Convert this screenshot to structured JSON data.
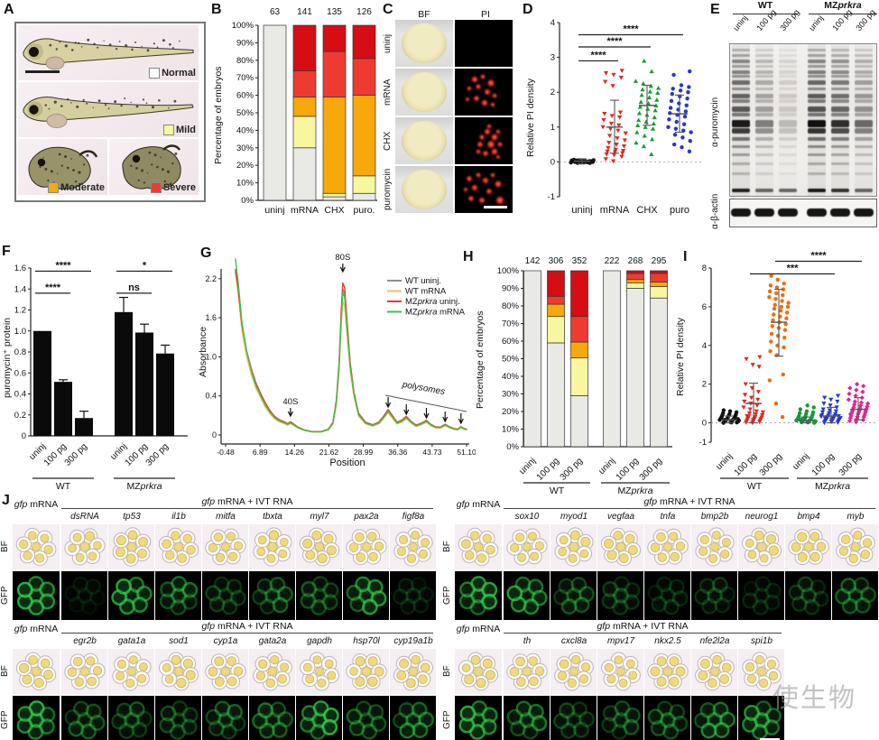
{
  "figure": {
    "labels": {
      "A": "A",
      "B": "B",
      "C": "C",
      "D": "D",
      "E": "E",
      "F": "F",
      "G": "G",
      "H": "H",
      "I": "I",
      "J": "J"
    }
  },
  "colors": {
    "normal": "#e9e9e6",
    "mild": "#f9f6a0",
    "moderate": "#f7a80b",
    "severe": "#ee3b31",
    "severe_dark": "#d60d12",
    "black": "#111111",
    "red": "#e02722",
    "green": "#149b38",
    "blue": "#2a35c8",
    "orange": "#f06b10",
    "magenta": "#ea1f93"
  },
  "watermark": "使生物",
  "panelA": {
    "legend": [
      {
        "name": "Normal",
        "color": "#ffffff"
      },
      {
        "name": "Mild",
        "color": "#f9f6a0"
      },
      {
        "name": "Moderate",
        "color": "#f7a80b"
      },
      {
        "name": "Severe",
        "color": "#ee3b31"
      }
    ]
  },
  "panelC": {
    "col_headers": [
      "BF",
      "PI"
    ],
    "rows": [
      "uninj",
      "mRNA",
      "CHX",
      "puromycin"
    ]
  },
  "panelE": {
    "groups": [
      {
        "prefix": "",
        "name": "WT"
      },
      {
        "prefix": "MZ",
        "name": "prkra"
      }
    ],
    "lanes": [
      "uninj",
      "100 pg",
      "300 pg",
      "uninj",
      "100 pg",
      "300 pg"
    ],
    "lane_intensity": [
      1.0,
      0.5,
      0.22,
      1.05,
      0.9,
      0.6
    ],
    "blot_labels": [
      "α-puromycin",
      "α-β-actin"
    ]
  },
  "panelJ": {
    "control_label": "gfp mRNA",
    "header": "gfp mRNA + IVT RNA",
    "row_labels": [
      "BF",
      "GFP"
    ],
    "blocks": [
      {
        "genes": [
          "dsRNA",
          "tp53",
          "il1b",
          "mitfa",
          "tbxta",
          "myl7",
          "pax2a",
          "figf8a"
        ],
        "gfp": [
          0.12,
          0.85,
          0.6,
          0.35,
          0.5,
          0.5,
          0.8,
          0.2
        ],
        "control_gfp": 0.88
      },
      {
        "genes": [
          "sox10",
          "myod1",
          "vegfaa",
          "tnfa",
          "bmp2b",
          "neurog1",
          "bmp4",
          "myb"
        ],
        "gfp": [
          0.85,
          0.45,
          0.35,
          0.22,
          0.3,
          0.2,
          0.35,
          0.5
        ],
        "control_gfp": 0.88
      },
      {
        "genes": [
          "egr2b",
          "gata1a",
          "sod1",
          "cyp1a",
          "gata2a",
          "gapdh",
          "hsp70l",
          "cyp19a1b"
        ],
        "gfp": [
          0.5,
          0.45,
          0.4,
          0.5,
          0.6,
          0.9,
          0.55,
          0.6
        ],
        "control_gfp": 0.88
      },
      {
        "genes": [
          "th",
          "cxcl8a",
          "mpv17",
          "nkx2.5",
          "nfe2l2a",
          "spi1b"
        ],
        "gfp": [
          0.6,
          0.4,
          0.45,
          0.5,
          0.7,
          0.85
        ],
        "control_gfp": 0.88
      }
    ]
  },
  "chart_data": [
    {
      "panel": "B",
      "type": "stacked-bar",
      "ylabel": "Percentage of embryos",
      "categories": [
        "uninj",
        "mRNA",
        "CHX",
        "puro."
      ],
      "counts": [
        63,
        141,
        135,
        126
      ],
      "yticks": [
        "0%",
        "10%",
        "20%",
        "30%",
        "40%",
        "50%",
        "60%",
        "70%",
        "80%",
        "90%",
        "100%"
      ],
      "series": [
        {
          "name": "Normal",
          "color": "#e9e9e6",
          "values": [
            100,
            30,
            2,
            4
          ]
        },
        {
          "name": "Mild",
          "color": "#f9f6a0",
          "values": [
            0,
            18,
            2,
            10
          ]
        },
        {
          "name": "Moderate",
          "color": "#f7a80b",
          "values": [
            0,
            11,
            55,
            46
          ]
        },
        {
          "name": "Severe",
          "color": "#ee3b31",
          "values": [
            0,
            15,
            26,
            21
          ]
        },
        {
          "name": "Severe-dark",
          "color": "#d60d12",
          "values": [
            0,
            26,
            15,
            19
          ]
        }
      ]
    },
    {
      "panel": "D",
      "type": "scatter",
      "ylabel": "Relative PI density",
      "yticks": [
        -1,
        0,
        1,
        2,
        3,
        4
      ],
      "ylim": [
        -1,
        4
      ],
      "categories": [
        "uninj",
        "mRNA",
        "CHX",
        "puro"
      ],
      "groups": [
        {
          "name": "uninj",
          "color": "#111111",
          "marker": "circle",
          "mean": 0.02,
          "lo": -0.05,
          "hi": 0.09,
          "values": [
            0.0,
            0.02,
            -0.02,
            0.03,
            0.01,
            -0.01,
            0.04,
            0.0,
            0.02,
            -0.03,
            0.05,
            0.01,
            0.03,
            -0.02,
            0.0,
            0.02,
            0.04,
            -0.01,
            0.01,
            0.03,
            0.0,
            -0.02,
            0.05,
            0.02,
            0.01,
            0.06,
            -0.03,
            0.03,
            0.0,
            0.02
          ]
        },
        {
          "name": "mRNA",
          "color": "#e02722",
          "marker": "tri-down",
          "mean": 1.0,
          "lo": 0.25,
          "hi": 1.77,
          "values": [
            0.02,
            0.08,
            0.15,
            0.2,
            0.22,
            0.25,
            0.28,
            0.3,
            0.32,
            0.35,
            0.4,
            0.45,
            0.5,
            0.55,
            0.62,
            0.68,
            0.75,
            0.82,
            0.9,
            0.95,
            1.0,
            1.05,
            1.1,
            1.2,
            1.28,
            1.32,
            1.38,
            1.42,
            2.18,
            2.3,
            2.42,
            2.5,
            2.55,
            2.62
          ]
        },
        {
          "name": "CHX",
          "color": "#149b38",
          "marker": "tri-up",
          "mean": 1.62,
          "lo": 1.05,
          "hi": 2.2,
          "values": [
            0.22,
            0.45,
            0.55,
            0.65,
            0.75,
            0.85,
            0.95,
            1.0,
            1.05,
            1.1,
            1.15,
            1.2,
            1.28,
            1.35,
            1.4,
            1.48,
            1.52,
            1.58,
            1.62,
            1.68,
            1.72,
            1.78,
            1.85,
            1.92,
            1.98,
            2.02,
            2.08,
            2.12,
            2.18,
            2.25,
            2.32,
            2.6,
            2.9
          ]
        },
        {
          "name": "puro",
          "color": "#2a35c8",
          "marker": "circle",
          "mean": 1.38,
          "lo": 0.85,
          "hi": 1.92,
          "values": [
            0.3,
            0.42,
            0.5,
            0.6,
            0.7,
            0.78,
            0.85,
            0.9,
            0.95,
            1.0,
            1.08,
            1.15,
            1.22,
            1.3,
            1.35,
            1.4,
            1.45,
            1.5,
            1.55,
            1.62,
            1.68,
            1.75,
            1.82,
            1.88,
            1.95,
            2.0,
            2.05,
            2.1,
            2.15,
            2.2,
            2.5,
            2.6
          ]
        }
      ],
      "sig": [
        {
          "a": 0,
          "b": 1,
          "label": "****",
          "y": 2.9
        },
        {
          "a": 0,
          "b": 2,
          "label": "****",
          "y": 3.3
        },
        {
          "a": 0,
          "b": 3,
          "label": "****",
          "y": 3.65
        }
      ]
    },
    {
      "panel": "F",
      "type": "bar",
      "ylabel": "puromycin⁺ protein",
      "yticks": [
        0,
        0.2,
        0.4,
        0.6,
        0.8,
        1.0,
        1.2,
        1.4,
        1.6
      ],
      "ylim": [
        0,
        1.6
      ],
      "categories": [
        "uninj",
        "100 pg",
        "300 pg",
        "uninj",
        "100 pg",
        "300 pg"
      ],
      "group_labels": [
        "WT",
        "MZprkra"
      ],
      "values": [
        1.0,
        0.515,
        0.17,
        1.18,
        0.985,
        0.785
      ],
      "errors": [
        0,
        0.02,
        0.065,
        0.14,
        0.08,
        0.08
      ],
      "bar_color": "#0a0a0a",
      "sig": [
        {
          "a": 0,
          "b": 1,
          "label": "****",
          "y": 1.36
        },
        {
          "a": 0,
          "b": 2,
          "label": "****",
          "y": 1.57
        },
        {
          "a": 3,
          "b": 4,
          "label": "ns",
          "y": 1.36
        },
        {
          "a": 3,
          "b": 5,
          "label": "*",
          "y": 1.57
        }
      ]
    },
    {
      "panel": "G",
      "type": "line",
      "ylabel": "Absorbance",
      "xlabel": "Position",
      "yticks": [
        "0",
        "0.4",
        "1.0",
        "1.6",
        "2.2"
      ],
      "xticks": [
        "-0.48",
        "6.89",
        "14.26",
        "21.62",
        "28.99",
        "36.36",
        "43.73",
        "51.10"
      ],
      "annotations": {
        "peak40s": "40S",
        "peak80s": "80S",
        "polysomes": "polysomes"
      },
      "x": [
        1.6,
        2.2,
        3,
        4,
        5,
        6,
        7,
        8,
        9,
        10,
        11,
        12,
        12.8,
        13.4,
        14.0,
        15,
        16.5,
        18,
        20,
        21.5,
        22.5,
        23.2,
        23.8,
        24.2,
        24.6,
        25.0,
        25.5,
        26.2,
        27,
        28,
        29.5,
        31,
        32.3,
        33.3,
        34.3,
        35.2,
        36.2,
        37.2,
        38.2,
        39.2,
        40.3,
        41.4,
        42.5,
        43.4,
        44.4,
        45.5,
        46.5,
        47.4,
        48.4,
        49.2,
        49.9,
        50.6,
        51.2
      ],
      "y": [
        2.35,
        2.05,
        1.5,
        1.1,
        0.82,
        0.6,
        0.44,
        0.33,
        0.25,
        0.19,
        0.155,
        0.135,
        0.115,
        0.135,
        0.115,
        0.08,
        0.05,
        0.035,
        0.035,
        0.06,
        0.13,
        0.35,
        0.9,
        1.6,
        2.12,
        2.05,
        1.55,
        0.9,
        0.45,
        0.22,
        0.13,
        0.105,
        0.13,
        0.19,
        0.26,
        0.2,
        0.13,
        0.15,
        0.19,
        0.14,
        0.1,
        0.12,
        0.15,
        0.11,
        0.085,
        0.08,
        0.11,
        0.085,
        0.065,
        0.06,
        0.085,
        0.065,
        0.06
      ],
      "series": [
        {
          "name": "WT uninj.",
          "color": "#8f8f8f",
          "scale": 0.965,
          "left": 1.0
        },
        {
          "name": "WT mRNA",
          "color": "#f3bd64",
          "scale": 0.875,
          "left": 1.02
        },
        {
          "name": "MZprkra uninj.",
          "color": "#e03b32",
          "scale": 1.01,
          "left": 1.0
        },
        {
          "name": "MZprkra mRNA",
          "color": "#3ec24b",
          "scale": 0.94,
          "left": 1.12
        }
      ],
      "polysome_peaks_x": [
        34.3,
        38.2,
        42.5,
        46.5,
        49.9
      ]
    },
    {
      "panel": "H",
      "type": "stacked-bar",
      "ylabel": "Percentage of embryos",
      "categories": [
        "uninj",
        "100 pg",
        "300 pg",
        "uninj",
        "100 pg",
        "300 pg"
      ],
      "group_labels": [
        "WT",
        "MZprkra"
      ],
      "counts": [
        142,
        306,
        352,
        222,
        268,
        295
      ],
      "yticks": [
        "0%",
        "10%",
        "20%",
        "30%",
        "40%",
        "50%",
        "60%",
        "70%",
        "80%",
        "90%",
        "100%"
      ],
      "series": [
        {
          "name": "Normal",
          "color": "#e9e9e6",
          "values": [
            100,
            59,
            29,
            100,
            90,
            84.5
          ]
        },
        {
          "name": "Mild",
          "color": "#f9f6a0",
          "values": [
            0,
            15,
            21.5,
            0,
            3,
            6.5
          ]
        },
        {
          "name": "Moderate",
          "color": "#f7a80b",
          "values": [
            0,
            7,
            9,
            0,
            2,
            2.5
          ]
        },
        {
          "name": "Severe",
          "color": "#ee3b31",
          "values": [
            0,
            4.5,
            14.5,
            0,
            3.5,
            5
          ]
        },
        {
          "name": "Severe-dark",
          "color": "#d60d12",
          "values": [
            0,
            14.5,
            26,
            0,
            1.5,
            1.5
          ]
        }
      ]
    },
    {
      "panel": "I",
      "type": "scatter",
      "ylabel": "Relative PI density",
      "yticks": [
        -1,
        0,
        2,
        4,
        6,
        8
      ],
      "ylim": [
        -1,
        8
      ],
      "categories": [
        "uninj",
        "100 pg",
        "300 pg",
        "uninj",
        "100 pg",
        "300 pg"
      ],
      "group_labels": [
        "WT",
        "MZprkra"
      ],
      "groups": [
        {
          "name": "WT uninj",
          "color": "#111111",
          "marker": "circle",
          "mean": 0.15,
          "lo": 0.0,
          "hi": 0.35,
          "values": [
            0.0,
            0.02,
            0.04,
            0.05,
            0.06,
            0.08,
            0.08,
            0.1,
            0.1,
            0.12,
            0.12,
            0.14,
            0.15,
            0.15,
            0.17,
            0.18,
            0.2,
            0.2,
            0.22,
            0.25,
            0.27,
            0.3,
            0.32,
            0.35,
            0.38,
            0.4,
            0.42,
            0.45,
            0.5,
            0.55,
            0.6,
            0.65,
            0.05,
            0.1,
            0.15,
            0.2,
            0.02,
            0.07
          ]
        },
        {
          "name": "WT 100 pg",
          "color": "#e02722",
          "marker": "tri-down",
          "mean": 1.0,
          "lo": 0.0,
          "hi": 2.05,
          "values": [
            0.0,
            0.02,
            0.05,
            0.08,
            0.1,
            0.12,
            0.15,
            0.18,
            0.2,
            0.22,
            0.25,
            0.28,
            0.3,
            0.35,
            0.4,
            0.45,
            0.5,
            0.55,
            0.6,
            0.7,
            0.8,
            0.9,
            1.0,
            1.1,
            1.2,
            1.3,
            1.45,
            1.6,
            1.8,
            2.0,
            2.9,
            3.0,
            3.3,
            3.4,
            0.15,
            0.35
          ]
        },
        {
          "name": "WT 300 pg",
          "color": "#f06b10",
          "marker": "circle",
          "mean": 5.2,
          "lo": 3.45,
          "hi": 6.9,
          "values": [
            0.3,
            1.0,
            2.2,
            2.5,
            3.5,
            3.7,
            3.9,
            4.0,
            4.2,
            4.4,
            4.5,
            4.6,
            4.8,
            4.9,
            5.0,
            5.1,
            5.2,
            5.3,
            5.4,
            5.5,
            5.6,
            5.7,
            5.8,
            5.9,
            6.0,
            6.0,
            6.1,
            6.2,
            6.3,
            6.4,
            6.5,
            6.6,
            6.7,
            6.8,
            6.9,
            7.0,
            7.1,
            7.2,
            7.4,
            7.6
          ]
        },
        {
          "name": "MZprkra uninj",
          "color": "#149b38",
          "marker": "circle",
          "mean": 0.12,
          "lo": 0.0,
          "hi": 0.3,
          "values": [
            0.0,
            0.02,
            0.03,
            0.05,
            0.05,
            0.07,
            0.08,
            0.1,
            0.1,
            0.12,
            0.13,
            0.15,
            0.15,
            0.17,
            0.18,
            0.2,
            0.22,
            0.25,
            0.28,
            0.3,
            0.32,
            0.35,
            0.4,
            0.45,
            0.5,
            0.55,
            0.6,
            0.7,
            0.8,
            0.9,
            0.12,
            0.08,
            0.05,
            0.18
          ]
        },
        {
          "name": "MZprkra 100 pg",
          "color": "#2438d0",
          "marker": "tri-down",
          "mean": 0.35,
          "lo": 0.0,
          "hi": 0.8,
          "values": [
            0.0,
            0.02,
            0.05,
            0.07,
            0.1,
            0.1,
            0.12,
            0.15,
            0.15,
            0.18,
            0.2,
            0.22,
            0.25,
            0.25,
            0.28,
            0.3,
            0.32,
            0.35,
            0.38,
            0.4,
            0.45,
            0.5,
            0.55,
            0.6,
            0.65,
            0.7,
            0.8,
            0.9,
            1.0,
            1.1,
            1.2,
            1.3,
            1.4,
            0.18,
            0.22,
            0.35
          ]
        },
        {
          "name": "MZprkra 300 pg",
          "color": "#ea1f93",
          "marker": "diamond",
          "mean": 0.7,
          "lo": 0.15,
          "hi": 1.3,
          "values": [
            0.05,
            0.1,
            0.15,
            0.2,
            0.25,
            0.3,
            0.32,
            0.35,
            0.4,
            0.45,
            0.5,
            0.52,
            0.55,
            0.6,
            0.62,
            0.65,
            0.7,
            0.72,
            0.75,
            0.8,
            0.85,
            0.9,
            0.95,
            1.0,
            1.05,
            1.1,
            1.2,
            1.3,
            1.4,
            1.5,
            1.6,
            1.7,
            1.8,
            1.9,
            2.0,
            0.45
          ]
        }
      ],
      "sig": [
        {
          "a": 1,
          "b": 4,
          "label": "***",
          "y": 7.7
        },
        {
          "a": 2,
          "b": 5,
          "label": "****",
          "y": 8.35
        }
      ]
    }
  ]
}
